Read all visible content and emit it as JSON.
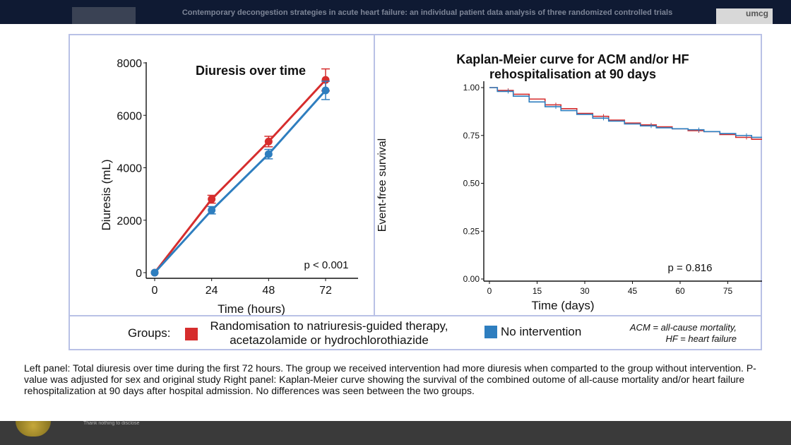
{
  "header": {
    "title": "Contemporary decongestion strategies in acute heart failure: an individual patient data analysis of three randomized controlled trials",
    "logo_text": "umcg"
  },
  "colors": {
    "intervention": "#d62d2d",
    "no_intervention": "#2e7ebf",
    "border": "#b9c1e6"
  },
  "chart_data": [
    {
      "type": "line",
      "title": "Diuresis over time",
      "xlabel": "Time (hours)",
      "ylabel": "Diuresis (mL)",
      "x": [
        0,
        24,
        48,
        72
      ],
      "x_ticks": [
        "0",
        "24",
        "48",
        "72"
      ],
      "y_ticks": [
        "0",
        "2000",
        "4000",
        "6000",
        "8000"
      ],
      "ylim": [
        0,
        8000
      ],
      "series": [
        {
          "name": "Randomisation to natriuresis-guided therapy, acetazolamide or hydrochlorothiazide",
          "values": [
            0,
            2800,
            5000,
            7350
          ],
          "err": [
            0,
            150,
            200,
            420
          ]
        },
        {
          "name": "No intervention",
          "values": [
            0,
            2380,
            4520,
            6950
          ],
          "err": [
            0,
            140,
            180,
            350
          ]
        }
      ],
      "annotation": "p < 0.001"
    },
    {
      "type": "line",
      "title": "Kaplan-Meier curve for ACM and/or HF rehospitalisation at 90 days",
      "xlabel": "Time (days)",
      "ylabel": "Event-free survival",
      "x_ticks": [
        "0",
        "15",
        "30",
        "45",
        "60",
        "75",
        "90"
      ],
      "y_ticks": [
        "0.00",
        "0.25",
        "0.50",
        "0.75",
        "1.00"
      ],
      "xlim": [
        0,
        90
      ],
      "ylim": [
        0,
        1
      ],
      "series": [
        {
          "name": "Randomisation to natriuresis-guided therapy, acetazolamide or hydrochlorothiazide",
          "x": [
            0,
            5,
            10,
            15,
            20,
            25,
            30,
            35,
            40,
            45,
            50,
            55,
            60,
            65,
            70,
            75,
            80,
            85,
            90
          ],
          "values": [
            1.0,
            0.985,
            0.965,
            0.94,
            0.91,
            0.89,
            0.865,
            0.85,
            0.83,
            0.815,
            0.805,
            0.795,
            0.785,
            0.775,
            0.77,
            0.755,
            0.74,
            0.73,
            0.72
          ]
        },
        {
          "name": "No intervention",
          "x": [
            0,
            5,
            10,
            15,
            20,
            25,
            30,
            35,
            40,
            45,
            50,
            55,
            60,
            65,
            70,
            75,
            80,
            85,
            90
          ],
          "values": [
            1.0,
            0.98,
            0.955,
            0.925,
            0.9,
            0.88,
            0.86,
            0.84,
            0.825,
            0.81,
            0.8,
            0.79,
            0.785,
            0.78,
            0.77,
            0.76,
            0.75,
            0.74,
            0.73
          ]
        }
      ],
      "annotation": "p = 0.816"
    }
  ],
  "legend": {
    "groups_label": "Groups:",
    "item1": "Randomisation to natriuresis-guided therapy, acetazolamide or hydrochlorothiazide",
    "item2": "No intervention",
    "abbr1": "ACM = all-cause mortality,",
    "abbr2": "HF = heart failure"
  },
  "caption": "Left panel: Total diuresis over time during the first 72 hours. The group we received intervention had more diuresis when comparted to the group without intervention. P-value was adjusted for sex and original study Right panel: Kaplan-Meier curve showing the survival of the combined outome of all-cause mortality and/or heart failure rehospitalization at 90 days after hospital admission. No differences was seen between the two groups.",
  "footer_small": "Thank nothing to disclose"
}
